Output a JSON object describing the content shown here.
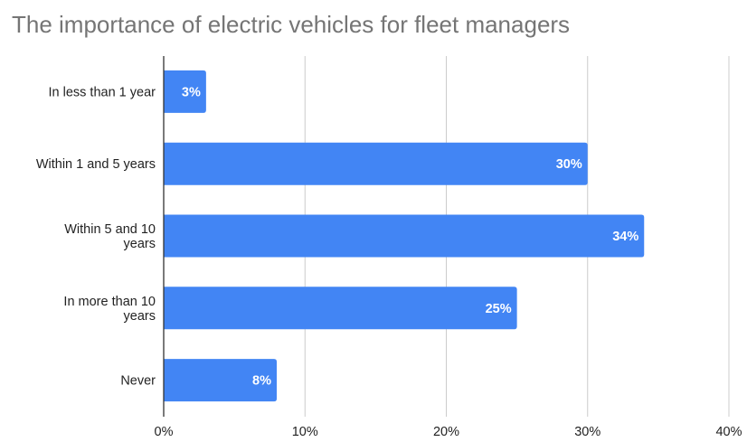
{
  "chart_data": {
    "type": "bar",
    "orientation": "horizontal",
    "title": "The importance of electric vehicles for fleet managers",
    "categories": [
      [
        "In less than 1 year"
      ],
      [
        "Within 1 and 5 years"
      ],
      [
        "Within 5 and 10",
        "years"
      ],
      [
        "In more than 10",
        "years"
      ],
      [
        "Never"
      ]
    ],
    "values": [
      3,
      30,
      34,
      25,
      8
    ],
    "data_labels": [
      "3%",
      "30%",
      "34%",
      "25%",
      "8%"
    ],
    "xlim": [
      0,
      40
    ],
    "x_ticks": [
      "0%",
      "10%",
      "20%",
      "30%",
      "40%"
    ],
    "grid": true,
    "bar_color": "#4285F4",
    "xlabel": "",
    "ylabel": ""
  }
}
